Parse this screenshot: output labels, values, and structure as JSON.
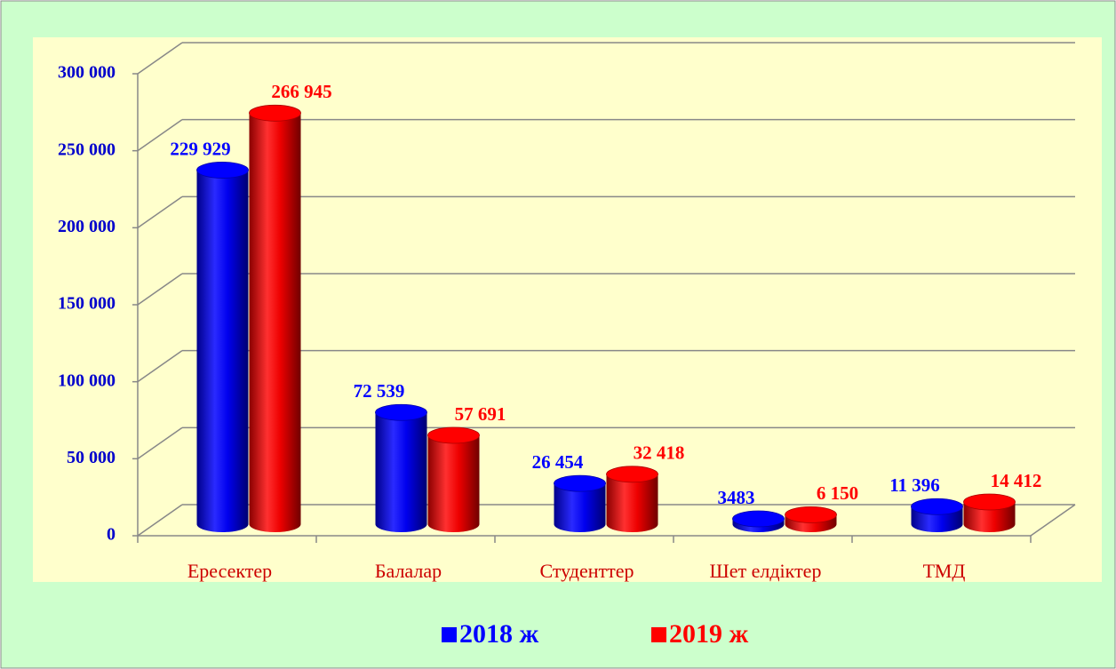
{
  "chart_data": {
    "type": "bar",
    "categories": [
      "Ересектер",
      "Балалар",
      "Студенттер",
      "Шет елдіктер",
      "ТМД"
    ],
    "series": [
      {
        "name": "2018 ж",
        "color": "#0000ff",
        "values": [
          229929,
          72539,
          26454,
          3483,
          11396
        ],
        "value_labels": [
          "229 929",
          "72 539",
          "26 454",
          "3483",
          "11 396"
        ]
      },
      {
        "name": "2019 ж",
        "color": "#ff0000",
        "values": [
          266945,
          57691,
          32418,
          6150,
          14412
        ],
        "value_labels": [
          "266 945",
          "57 691",
          "32 418",
          "6 150",
          "14 412"
        ]
      }
    ],
    "ylim": [
      0,
      300000
    ],
    "yticks": [
      0,
      {
        "value": 50000,
        "label": "50 000"
      },
      {
        "value": 100000,
        "label": "100 000"
      },
      {
        "value": 150000,
        "label": "150 000"
      },
      {
        "value": 200000,
        "label": "200 000"
      },
      {
        "value": 250000,
        "label": "250 000"
      },
      {
        "value": 300000,
        "label": "300 000"
      }
    ],
    "grid": true,
    "legend": "bottom"
  }
}
